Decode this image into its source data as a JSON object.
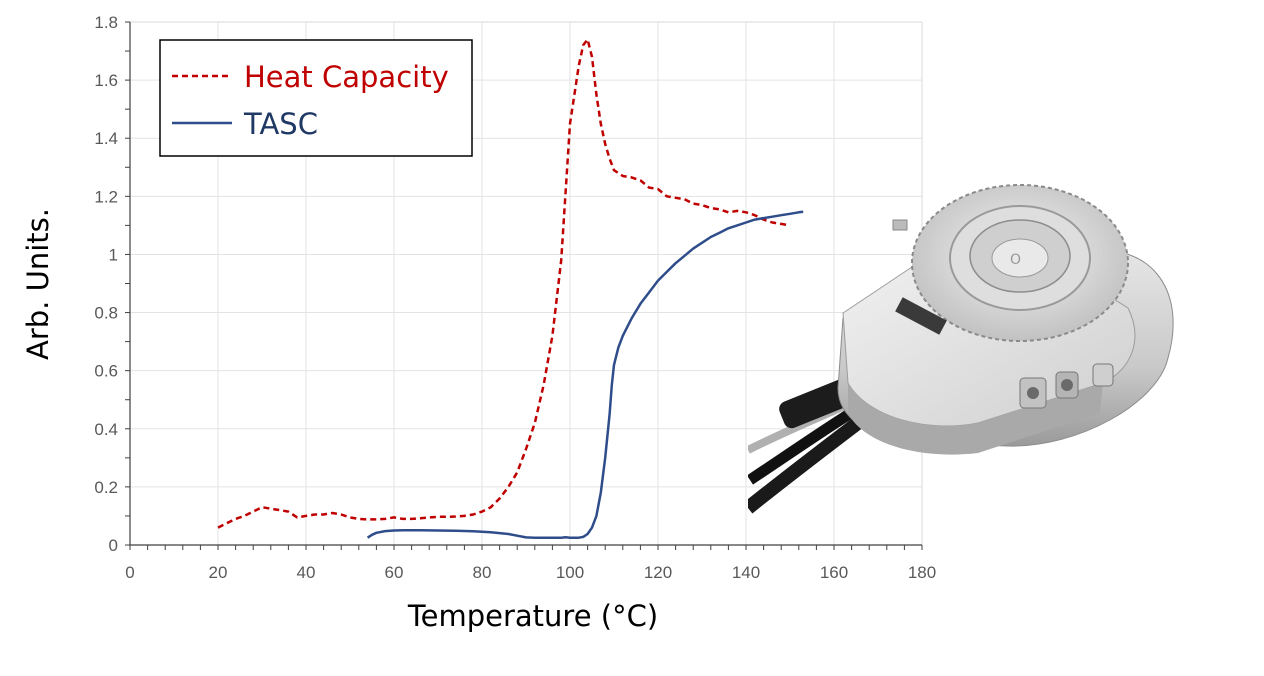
{
  "chart_data": {
    "type": "line",
    "title": "",
    "xlabel": "Temperature (°C)",
    "ylabel": "Arb. Units.",
    "xlim": [
      0,
      180
    ],
    "ylim": [
      0,
      1.8
    ],
    "xticks": [
      "0",
      "20",
      "40",
      "60",
      "80",
      "100",
      "120",
      "140",
      "160",
      "180"
    ],
    "yticks": [
      "0",
      "0.2",
      "0.4",
      "0.6",
      "0.8",
      "1",
      "1.2",
      "1.4",
      "1.6",
      "1.8"
    ],
    "grid": true,
    "legend_position": "top-left",
    "series": [
      {
        "name": "Heat Capacity",
        "color": "#c00000",
        "style": "dashed",
        "x": [
          20,
          22,
          24,
          26,
          28,
          30,
          32,
          34,
          36,
          38,
          40,
          42,
          44,
          46,
          48,
          50,
          52,
          54,
          56,
          58,
          60,
          62,
          64,
          66,
          68,
          70,
          72,
          74,
          76,
          78,
          80,
          82,
          84,
          86,
          88,
          90,
          92,
          94,
          96,
          98,
          100,
          101,
          102,
          103,
          104,
          105,
          106,
          107,
          108,
          109,
          110,
          112,
          114,
          116,
          118,
          120,
          122,
          124,
          126,
          128,
          130,
          132,
          134,
          136,
          138,
          140,
          142,
          144,
          146,
          148,
          150
        ],
        "y": [
          0.06,
          0.075,
          0.09,
          0.1,
          0.115,
          0.13,
          0.125,
          0.12,
          0.115,
          0.095,
          0.1,
          0.105,
          0.105,
          0.11,
          0.105,
          0.095,
          0.09,
          0.088,
          0.088,
          0.09,
          0.095,
          0.09,
          0.09,
          0.092,
          0.095,
          0.097,
          0.097,
          0.098,
          0.1,
          0.105,
          0.115,
          0.13,
          0.16,
          0.2,
          0.25,
          0.33,
          0.42,
          0.55,
          0.72,
          0.98,
          1.45,
          1.55,
          1.65,
          1.72,
          1.74,
          1.68,
          1.55,
          1.45,
          1.38,
          1.33,
          1.29,
          1.27,
          1.265,
          1.255,
          1.23,
          1.225,
          1.2,
          1.195,
          1.19,
          1.175,
          1.17,
          1.16,
          1.155,
          1.145,
          1.15,
          1.145,
          1.135,
          1.12,
          1.11,
          1.105,
          1.1
        ]
      },
      {
        "name": "TASC",
        "color": "#2f4d8a",
        "style": "solid",
        "x": [
          54,
          55,
          56,
          58,
          60,
          62,
          64,
          66,
          70,
          74,
          78,
          82,
          86,
          88,
          90,
          92,
          94,
          96,
          98,
          99,
          100,
          102,
          103,
          104,
          105,
          106,
          107,
          108,
          109,
          109.5,
          110,
          110.5,
          111,
          112,
          113,
          114,
          116,
          118,
          120,
          122,
          124,
          126,
          128,
          130,
          132,
          134,
          136,
          138,
          140,
          142,
          144,
          146,
          148,
          150,
          152,
          153
        ],
        "y": [
          0.025,
          0.035,
          0.042,
          0.048,
          0.05,
          0.051,
          0.051,
          0.051,
          0.05,
          0.049,
          0.047,
          0.044,
          0.038,
          0.032,
          0.026,
          0.025,
          0.025,
          0.025,
          0.025,
          0.027,
          0.025,
          0.025,
          0.028,
          0.038,
          0.06,
          0.1,
          0.18,
          0.3,
          0.45,
          0.55,
          0.62,
          0.65,
          0.68,
          0.72,
          0.75,
          0.78,
          0.83,
          0.87,
          0.91,
          0.94,
          0.97,
          0.995,
          1.02,
          1.04,
          1.06,
          1.075,
          1.09,
          1.1,
          1.11,
          1.12,
          1.125,
          1.13,
          1.135,
          1.14,
          1.145,
          1.147
        ]
      }
    ]
  }
}
